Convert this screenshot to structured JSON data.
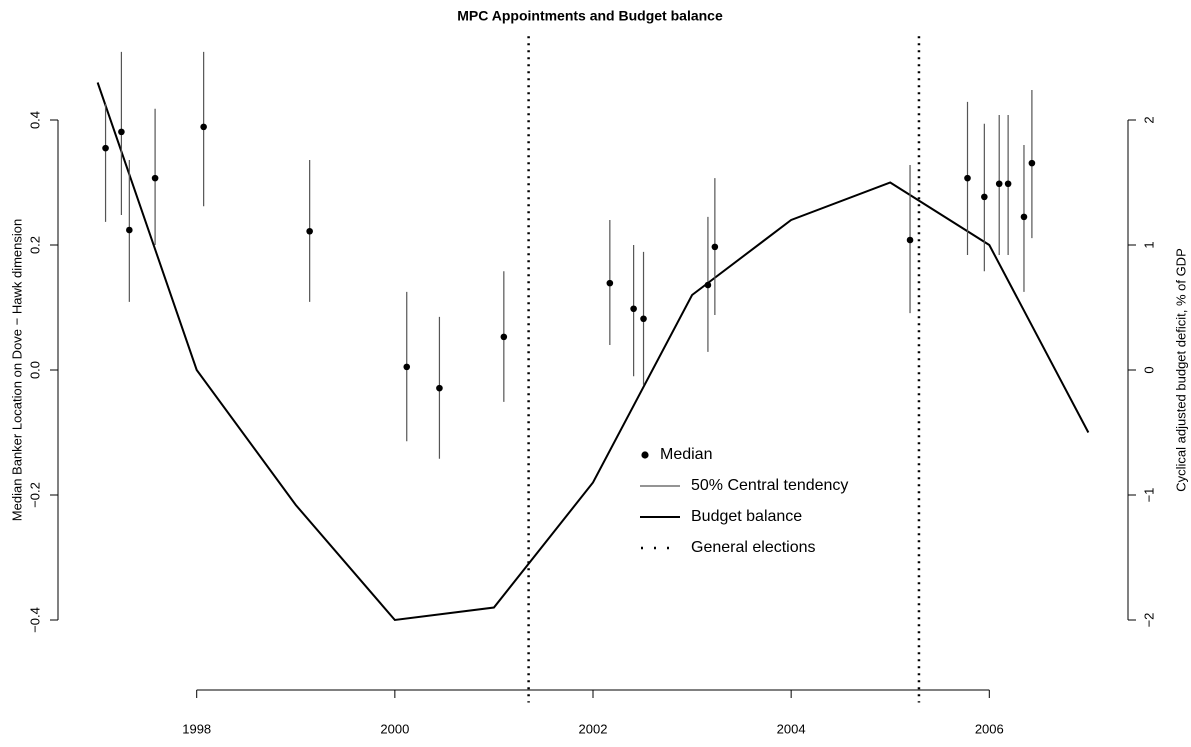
{
  "chart_data": {
    "type": "errorbar",
    "title": "MPC Appointments and Budget balance",
    "ylabel": "Median Banker Location on Dove − Hawk dimension",
    "y2label": "Cyclical adjusted budget deficit, % of GDP",
    "xlim": [
      1996.6,
      2007.4
    ],
    "xticks": [
      1998,
      2000,
      2002,
      2004,
      2006
    ],
    "ylim": [
      -0.5,
      0.55
    ],
    "yticks": [
      {
        "value": -0.4,
        "label": "−0.4"
      },
      {
        "value": -0.2,
        "label": "−0.2"
      },
      {
        "value": 0,
        "label": "0.0"
      },
      0.2,
      0.4
    ],
    "y2lim": [
      -2.5,
      2.75
    ],
    "y2ticks": [
      {
        "value": -2,
        "label": "−2"
      },
      {
        "value": -1,
        "label": "−1"
      },
      0,
      1,
      2
    ],
    "legend": "center",
    "series": [
      {
        "name": "Median",
        "type": "scatter",
        "color": "#000000",
        "x": [
          1997.08,
          1997.24,
          1997.32,
          1997.58,
          1998.07,
          1999.14,
          2000.12,
          2000.45,
          2001.1,
          2002.17,
          2002.41,
          2002.51,
          2003.16,
          2003.23,
          2005.2,
          2005.78,
          2005.95,
          2006.1,
          2006.19,
          2006.35,
          2006.43
        ],
        "values": [
          0.355,
          0.381,
          0.224,
          0.307,
          0.389,
          0.222,
          0.005,
          -0.029,
          0.053,
          0.139,
          0.098,
          0.082,
          0.136,
          0.197,
          0.208,
          0.307,
          0.277,
          0.298,
          0.298,
          0.245,
          0.331
        ]
      },
      {
        "name": "50% Central tendency",
        "type": "errorbar",
        "color": "#555555",
        "lower": [
          0.237,
          0.248,
          0.109,
          0.2,
          0.262,
          0.109,
          -0.114,
          -0.142,
          -0.051,
          0.04,
          -0.01,
          -0.024,
          0.029,
          0.088,
          0.091,
          0.184,
          0.158,
          0.184,
          0.184,
          0.125,
          0.211
        ],
        "upper": [
          0.426,
          0.509,
          0.336,
          0.418,
          0.509,
          0.336,
          0.125,
          0.085,
          0.158,
          0.24,
          0.2,
          0.189,
          0.245,
          0.307,
          0.328,
          0.429,
          0.394,
          0.408,
          0.408,
          0.36,
          0.448
        ]
      },
      {
        "name": "Budget balance",
        "type": "line",
        "axis": "y2",
        "color": "#000000",
        "x": [
          1997,
          1998,
          1999,
          2000,
          2001,
          2002,
          2003,
          2004,
          2005,
          2006,
          2007
        ],
        "values": [
          2.3,
          0,
          -1.08,
          -2.0,
          -1.9,
          -0.9,
          0.6,
          1.2,
          1.5,
          1.0,
          -0.5
        ]
      },
      {
        "name": "General elections",
        "type": "vline",
        "color": "#000000",
        "x": [
          2001.35,
          2005.29
        ]
      }
    ]
  }
}
